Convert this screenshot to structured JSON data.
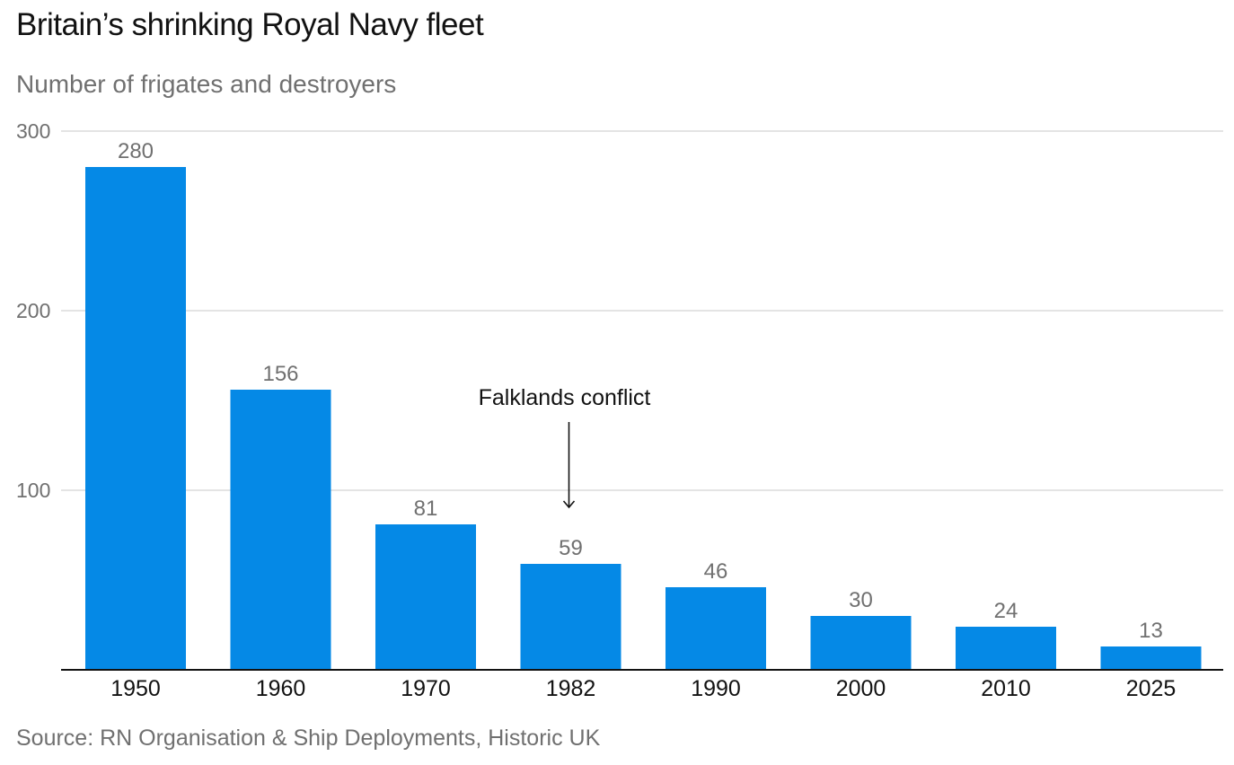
{
  "chart_data": {
    "type": "bar",
    "title": "Britain’s shrinking Royal Navy fleet",
    "subtitle": "Number of frigates and destroyers",
    "categories": [
      "1950",
      "1960",
      "1970",
      "1982",
      "1990",
      "2000",
      "2010",
      "2025"
    ],
    "values": [
      280,
      156,
      81,
      59,
      46,
      30,
      24,
      13
    ],
    "ylim": [
      0,
      300
    ],
    "yticks": [
      100,
      200,
      300
    ],
    "xlabel": "",
    "ylabel": "",
    "grid": true,
    "bar_color": "#0589e6",
    "annotation": {
      "text": "Falklands conflict",
      "category": "1982",
      "value": 90
    },
    "source": "Source: RN Organisation & Ship Deployments, Historic UK"
  }
}
